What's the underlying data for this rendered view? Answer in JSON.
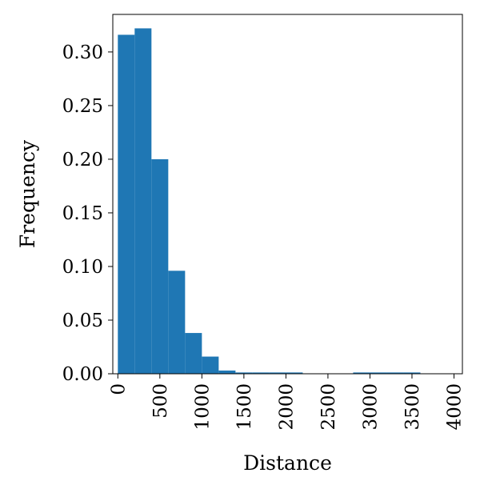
{
  "chart_data": {
    "type": "bar",
    "xlabel": "Distance",
    "ylabel": "Frequency",
    "xlim": [
      -60,
      4100
    ],
    "ylim": [
      0,
      0.335
    ],
    "xticks": [
      0,
      500,
      1000,
      1500,
      2000,
      2500,
      3000,
      3500,
      4000
    ],
    "yticks": [
      0.0,
      0.05,
      0.1,
      0.15,
      0.2,
      0.25,
      0.3
    ],
    "ytick_labels": [
      "0.00",
      "0.05",
      "0.10",
      "0.15",
      "0.20",
      "0.25",
      "0.30"
    ],
    "bin_width": 200,
    "bins": [
      {
        "start": 0,
        "value": 0.316
      },
      {
        "start": 200,
        "value": 0.322
      },
      {
        "start": 400,
        "value": 0.2
      },
      {
        "start": 600,
        "value": 0.096
      },
      {
        "start": 800,
        "value": 0.038
      },
      {
        "start": 1000,
        "value": 0.016
      },
      {
        "start": 1200,
        "value": 0.003
      },
      {
        "start": 1400,
        "value": 0.0012
      },
      {
        "start": 1600,
        "value": 0.0012
      },
      {
        "start": 1800,
        "value": 0.0012
      },
      {
        "start": 2000,
        "value": 0.0012
      },
      {
        "start": 2200,
        "value": 0.0
      },
      {
        "start": 2400,
        "value": 0.0
      },
      {
        "start": 2600,
        "value": 0.0
      },
      {
        "start": 2800,
        "value": 0.0012
      },
      {
        "start": 3000,
        "value": 0.0012
      },
      {
        "start": 3200,
        "value": 0.0012
      },
      {
        "start": 3400,
        "value": 0.0012
      }
    ],
    "bar_color": "#1f77b4",
    "grid": false
  }
}
